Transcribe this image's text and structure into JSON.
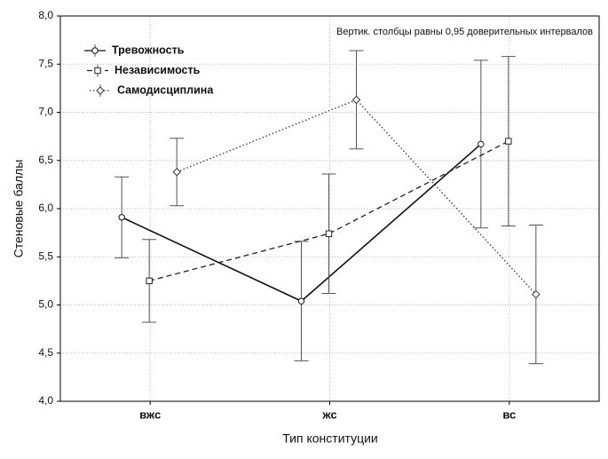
{
  "chart_data": {
    "type": "means-errorbar",
    "annotation": "Вертик. столбцы равны 0,95 доверительных интервалов",
    "x_label": "Тип конституции",
    "y_label": "Стеновые баллы",
    "categories": [
      "вжс",
      "жс",
      "вс"
    ],
    "series": [
      {
        "name": "Тревожность",
        "color": "#111111",
        "line_style": "solid",
        "marker": "circle",
        "values": [
          5.91,
          5.04,
          6.67
        ],
        "errors": [
          0.42,
          0.62,
          0.87
        ]
      },
      {
        "name": "Независимость",
        "color": "#222222",
        "line_style": "dashed",
        "marker": "square",
        "values": [
          5.25,
          5.74,
          6.7
        ],
        "errors": [
          0.43,
          0.62,
          0.88
        ]
      },
      {
        "name": "Самодисциплина",
        "color": "#333333",
        "line_style": "dotted",
        "marker": "diamond",
        "values": [
          6.38,
          7.13,
          5.11
        ],
        "errors": [
          0.35,
          0.51,
          0.72
        ]
      }
    ],
    "ylim": [
      4.0,
      8.0
    ],
    "yticks": [
      {
        "value": 4.0,
        "label": "4,0"
      },
      {
        "value": 4.5,
        "label": "4,5"
      },
      {
        "value": 5.0,
        "label": "5,0"
      },
      {
        "value": 5.5,
        "label": "5,5"
      },
      {
        "value": 6.0,
        "label": "6,0"
      },
      {
        "value": 6.5,
        "label": "6,5"
      },
      {
        "value": 7.0,
        "label": "7,0"
      },
      {
        "value": 7.5,
        "label": "7,5"
      },
      {
        "value": 8.0,
        "label": "8,0"
      }
    ],
    "grid": true,
    "legend": "upper left"
  }
}
